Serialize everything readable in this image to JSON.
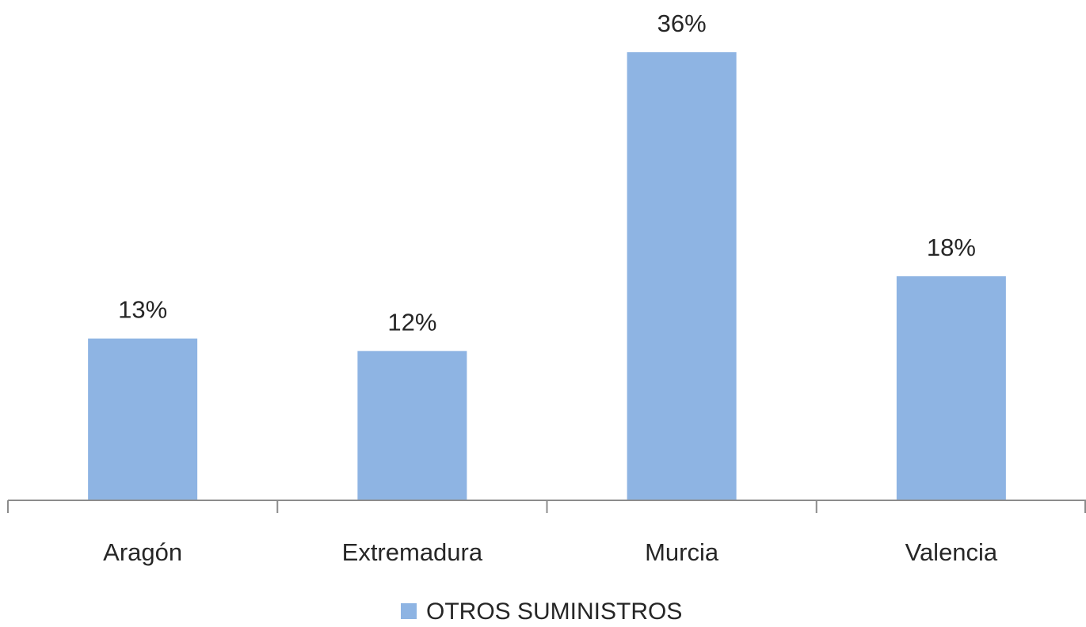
{
  "chart_data": {
    "type": "bar",
    "categories": [
      "Aragón",
      "Extremadura",
      "Murcia",
      "Valencia"
    ],
    "series": [
      {
        "name": "OTROS SUMINISTROS",
        "values": [
          13,
          12,
          36,
          18
        ],
        "labels": [
          "13%",
          "12%",
          "36%",
          "18%"
        ],
        "color": "#8EB4E3"
      }
    ],
    "ylim": [
      0,
      36
    ],
    "grid": false,
    "legend": "bottom",
    "axis_color": "#8C8C8C"
  }
}
